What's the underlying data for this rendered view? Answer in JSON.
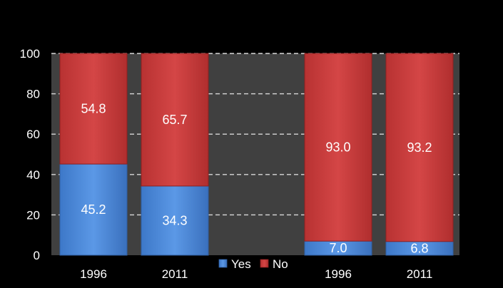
{
  "chart_data": {
    "type": "bar",
    "stacked": true,
    "categories": [
      "1996",
      "2011",
      "",
      "1996",
      "2011"
    ],
    "series": [
      {
        "name": "Yes",
        "values": [
          45.2,
          34.3,
          null,
          7.0,
          6.8
        ],
        "labels": [
          "45.2",
          "34.3",
          "",
          "7.0",
          "6.8"
        ],
        "color": "#4a86d6"
      },
      {
        "name": "No",
        "values": [
          54.8,
          65.7,
          null,
          93.0,
          93.2
        ],
        "labels": [
          "54.8",
          "65.7",
          "",
          "93.0",
          "93.2"
        ],
        "color": "#c83a3a"
      }
    ],
    "ylim": [
      0,
      100
    ],
    "yticks": [
      "0",
      "20",
      "40",
      "60",
      "80",
      "100"
    ],
    "grid": true,
    "legend_position": "bottom-center",
    "plot_background": "#404040",
    "background": "#000000"
  }
}
